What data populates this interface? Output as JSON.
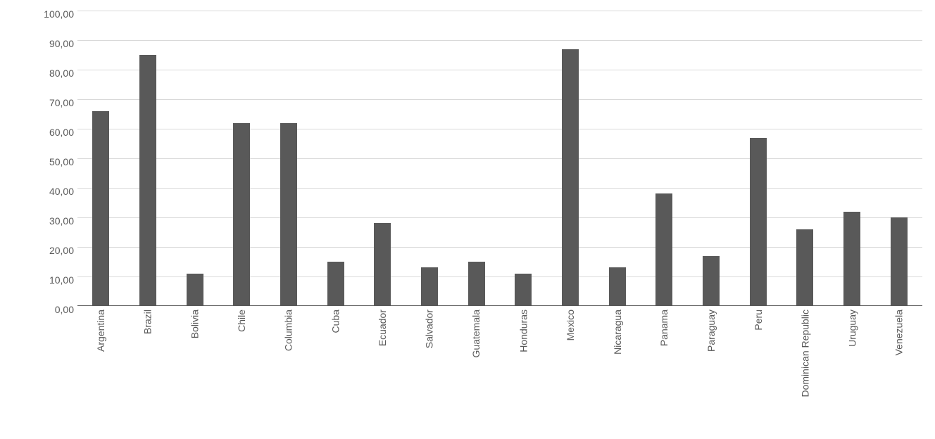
{
  "chart": {
    "type": "bar",
    "categories": [
      "Argentina",
      "Brazil",
      "Bolivia",
      "Chile",
      "Columbia",
      "Cuba",
      "Ecuador",
      "Salvador",
      "Guatemala",
      "Honduras",
      "Mexico",
      "Nicaragua",
      "Panama",
      "Paraguay",
      "Peru",
      "Dominican Republic",
      "Uruguay",
      "Venezuela"
    ],
    "values": [
      66,
      85,
      11,
      62,
      62,
      15,
      28,
      13,
      15,
      11,
      87,
      13,
      38,
      17,
      57,
      26,
      32,
      30
    ],
    "bar_color": "#595959",
    "bar_width_pct": 36,
    "ylim": [
      0,
      100
    ],
    "ytick_step": 10,
    "ytick_labels": [
      "0,00",
      "10,00",
      "20,00",
      "30,00",
      "40,00",
      "50,00",
      "60,00",
      "70,00",
      "80,00",
      "90,00",
      "100,00"
    ],
    "grid_color": "#d9d9d9",
    "axis_color": "#595959",
    "background_color": "#ffffff",
    "label_fontsize": 14,
    "label_color": "#595959",
    "x_label_rotation": -90
  }
}
